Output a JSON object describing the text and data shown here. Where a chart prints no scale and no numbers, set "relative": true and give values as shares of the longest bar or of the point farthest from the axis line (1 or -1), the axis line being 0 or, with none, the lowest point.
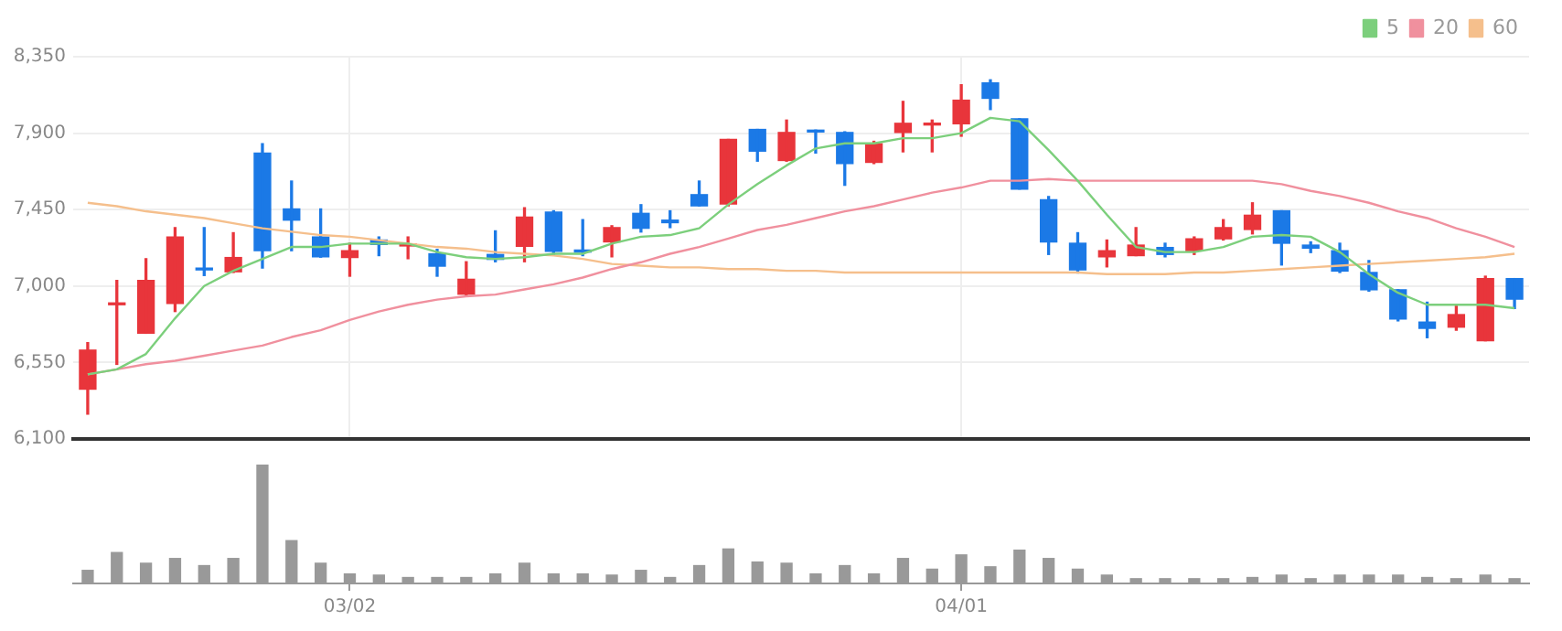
{
  "chart_data": [
    {
      "type": "candlestick",
      "categories": [
        null,
        null,
        null,
        null,
        null,
        null,
        null,
        null,
        null,
        null,
        null,
        null,
        null,
        null,
        null,
        null,
        null,
        null,
        null,
        null,
        null,
        null,
        null,
        null,
        null,
        null,
        null,
        null,
        null,
        null,
        null,
        null,
        null,
        null,
        null,
        null,
        null,
        null,
        null,
        null,
        null,
        null,
        null,
        null,
        null,
        null,
        null,
        null,
        null,
        null
      ],
      "ohlc": [
        [
          6393,
          6667,
          6246,
          6623
        ],
        [
          6890,
          7033,
          6539,
          6900
        ],
        [
          6722,
          7161,
          6722,
          7033
        ],
        [
          6897,
          7344,
          6850,
          7289
        ],
        [
          7102,
          7344,
          7062,
          7095
        ],
        [
          7084,
          7314,
          7080,
          7168
        ],
        [
          7783,
          7838,
          7106,
          7208
        ],
        [
          7454,
          7618,
          7208,
          7388
        ],
        [
          7289,
          7454,
          7170,
          7172
        ],
        [
          7168,
          7252,
          7058,
          7208
        ],
        [
          7271,
          7289,
          7179,
          7245
        ],
        [
          7236,
          7289,
          7161,
          7240
        ],
        [
          7190,
          7216,
          7058,
          7117
        ],
        [
          6952,
          7143,
          6941,
          7040
        ],
        [
          7186,
          7325,
          7143,
          7157
        ],
        [
          7234,
          7461,
          7143,
          7406
        ],
        [
          7435,
          7443,
          7186,
          7205
        ],
        [
          7212,
          7391,
          7179,
          7200
        ],
        [
          7260,
          7355,
          7172,
          7344
        ],
        [
          7428,
          7479,
          7318,
          7340
        ],
        [
          7388,
          7443,
          7344,
          7373
        ],
        [
          7538,
          7618,
          7472,
          7472
        ],
        [
          7483,
          7863,
          7472,
          7863
        ],
        [
          7922,
          7922,
          7735,
          7794
        ],
        [
          7739,
          7977,
          7735,
          7904
        ],
        [
          7914,
          7918,
          7783,
          7907
        ],
        [
          7904,
          7908,
          7593,
          7721
        ],
        [
          7728,
          7852,
          7721,
          7838
        ],
        [
          7904,
          8087,
          7790,
          7958
        ],
        [
          7948,
          7977,
          7790,
          7958
        ],
        [
          7955,
          8185,
          7882,
          8094
        ],
        [
          8196,
          8214,
          8039,
          8105
        ],
        [
          7984,
          7984,
          7571,
          7571
        ],
        [
          7508,
          7527,
          7186,
          7260
        ],
        [
          7252,
          7314,
          7077,
          7095
        ],
        [
          7172,
          7271,
          7113,
          7208
        ],
        [
          7179,
          7344,
          7179,
          7241
        ],
        [
          7227,
          7252,
          7172,
          7186
        ],
        [
          7208,
          7289,
          7186,
          7278
        ],
        [
          7278,
          7391,
          7271,
          7344
        ],
        [
          7333,
          7490,
          7307,
          7417
        ],
        [
          7443,
          7443,
          7124,
          7252
        ],
        [
          7241,
          7260,
          7197,
          7223
        ],
        [
          7208,
          7252,
          7080,
          7088
        ],
        [
          7080,
          7150,
          6970,
          6978
        ],
        [
          6978,
          6978,
          6795,
          6806
        ],
        [
          6788,
          6905,
          6696,
          6751
        ],
        [
          6758,
          6886,
          6740,
          6832
        ],
        [
          6678,
          7058,
          6678,
          7044
        ],
        [
          7044,
          7044,
          6868,
          6923
        ]
      ],
      "colors": [
        "#e8353b",
        "#e8353b",
        "#e8353b",
        "#e8353b",
        "#1b79e6",
        "#e8353b",
        "#1b79e6",
        "#1b79e6",
        "#1b79e6",
        "#e8353b",
        "#1b79e6",
        "#e8353b",
        "#1b79e6",
        "#e8353b",
        "#1b79e6",
        "#e8353b",
        "#1b79e6",
        "#1b79e6",
        "#e8353b",
        "#1b79e6",
        "#1b79e6",
        "#1b79e6",
        "#e8353b",
        "#1b79e6",
        "#e8353b",
        "#1b79e6",
        "#1b79e6",
        "#e8353b",
        "#e8353b",
        "#e8353b",
        "#e8353b",
        "#1b79e6",
        "#1b79e6",
        "#1b79e6",
        "#1b79e6",
        "#e8353b",
        "#e8353b",
        "#1b79e6",
        "#e8353b",
        "#e8353b",
        "#e8353b",
        "#1b79e6",
        "#1b79e6",
        "#1b79e6",
        "#1b79e6",
        "#1b79e6",
        "#1b79e6",
        "#e8353b",
        "#e8353b",
        "#1b79e6"
      ],
      "series": [
        {
          "name": "5",
          "type": "line",
          "color": "#7ccf7c",
          "values": [
            6480,
            6510,
            6600,
            6810,
            7000,
            7090,
            7160,
            7230,
            7230,
            7250,
            7250,
            7250,
            7200,
            7170,
            7160,
            7170,
            7190,
            7190,
            7250,
            7290,
            7300,
            7340,
            7480,
            7600,
            7710,
            7810,
            7840,
            7840,
            7870,
            7870,
            7900,
            7990,
            7970,
            7800,
            7620,
            7420,
            7230,
            7200,
            7200,
            7230,
            7290,
            7300,
            7290,
            7200,
            7070,
            6960,
            6890,
            6890,
            6890,
            6870
          ]
        },
        {
          "name": "20",
          "type": "line",
          "color": "#f0909e",
          "values": [
            6480,
            6510,
            6540,
            6560,
            6590,
            6620,
            6650,
            6700,
            6740,
            6800,
            6850,
            6890,
            6920,
            6940,
            6950,
            6980,
            7010,
            7050,
            7100,
            7140,
            7190,
            7230,
            7280,
            7330,
            7360,
            7400,
            7440,
            7470,
            7510,
            7550,
            7580,
            7620,
            7620,
            7630,
            7620,
            7620,
            7620,
            7620,
            7620,
            7620,
            7620,
            7600,
            7560,
            7530,
            7490,
            7440,
            7400,
            7340,
            7290,
            7230
          ]
        },
        {
          "name": "60",
          "type": "line",
          "color": "#f5bf8c",
          "values": [
            7490,
            7470,
            7440,
            7420,
            7400,
            7370,
            7340,
            7320,
            7300,
            7290,
            7270,
            7250,
            7230,
            7220,
            7200,
            7190,
            7180,
            7160,
            7130,
            7120,
            7110,
            7110,
            7100,
            7100,
            7090,
            7090,
            7080,
            7080,
            7080,
            7080,
            7080,
            7080,
            7080,
            7080,
            7080,
            7070,
            7070,
            7070,
            7080,
            7080,
            7090,
            7100,
            7110,
            7120,
            7130,
            7140,
            7150,
            7160,
            7170,
            7190
          ]
        }
      ],
      "ylim": [
        6100,
        8350
      ],
      "yticks": [
        {
          "value": 6100,
          "label": "6,100"
        },
        {
          "value": 6550,
          "label": "6,550"
        },
        {
          "value": 7000,
          "label": "7,000"
        },
        {
          "value": 7450,
          "label": "7,450"
        },
        {
          "value": 7900,
          "label": "7,900"
        },
        {
          "value": 8350,
          "label": "8,350"
        }
      ],
      "grid": true,
      "legend": "top right",
      "tick_labels": "y",
      "marker": "none"
    },
    {
      "type": "bar",
      "relative": true,
      "categories": [
        null,
        null,
        null,
        null,
        null,
        null,
        null,
        null,
        null,
        "03/02",
        null,
        null,
        null,
        null,
        null,
        null,
        null,
        null,
        null,
        null,
        null,
        null,
        null,
        null,
        null,
        null,
        null,
        null,
        null,
        null,
        "04/01",
        null,
        null,
        null,
        null,
        null,
        null,
        null,
        null,
        null,
        null,
        null,
        null,
        null,
        null,
        null,
        null,
        null,
        null,
        null
      ],
      "values": [
        0.11,
        0.26,
        0.17,
        0.21,
        0.15,
        0.21,
        1,
        0.36,
        0.17,
        0.08,
        0.07,
        0.05,
        0.05,
        0.05,
        0.08,
        0.17,
        0.08,
        0.08,
        0.07,
        0.11,
        0.05,
        0.15,
        0.29,
        0.18,
        0.17,
        0.08,
        0.15,
        0.08,
        0.21,
        0.12,
        0.24,
        0.14,
        0.28,
        0.21,
        0.12,
        0.07,
        0.04,
        0.04,
        0.04,
        0.04,
        0.05,
        0.07,
        0.04,
        0.07,
        0.07,
        0.07,
        0.05,
        0.04,
        0.07,
        0.04
      ],
      "color": "#999999"
    }
  ]
}
